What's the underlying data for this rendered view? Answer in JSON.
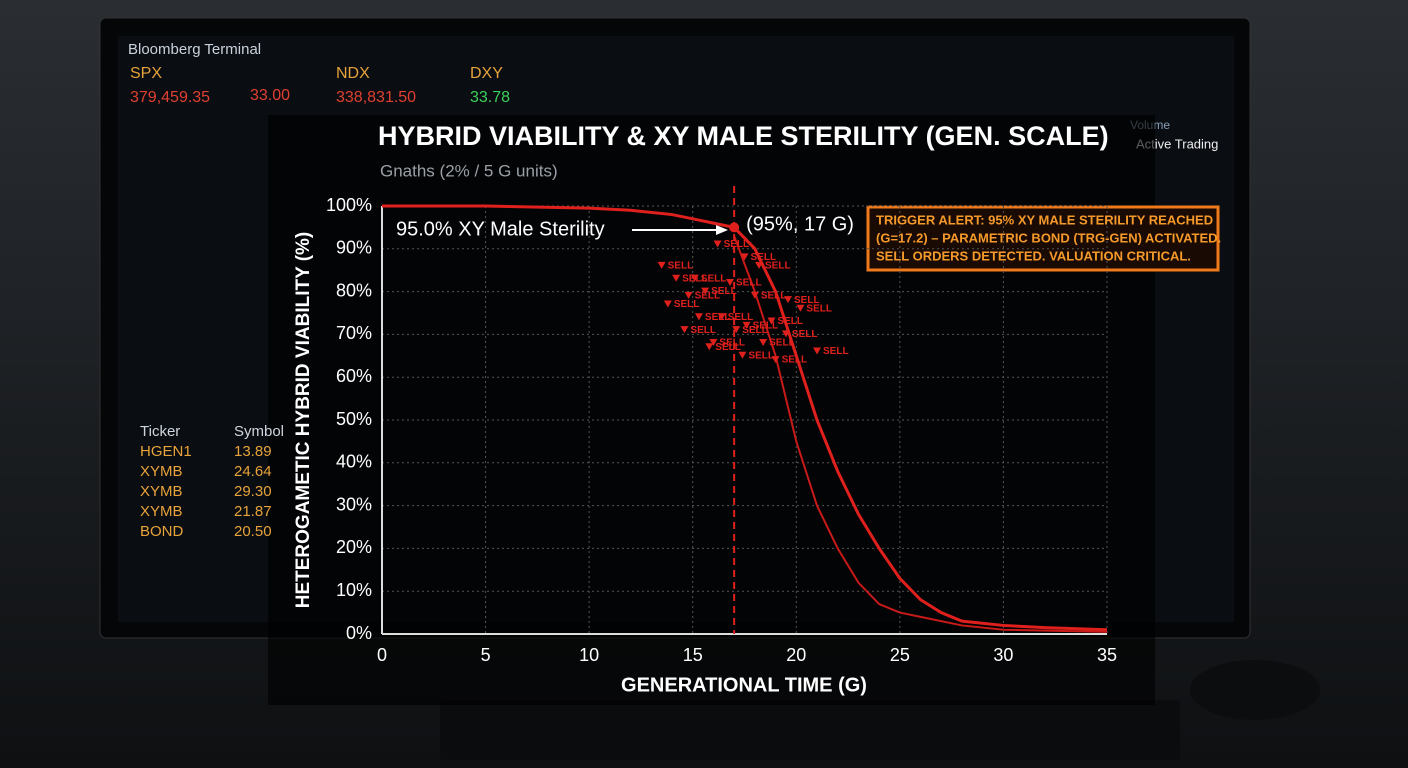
{
  "terminal": {
    "title": "Bloomberg Terminal",
    "quotes": [
      {
        "symbol": "SPX",
        "price": "379,459.35",
        "change": "33.00"
      },
      {
        "symbol": "NDX",
        "price": "338,831.50"
      },
      {
        "symbol": "DXY",
        "price": "33.78"
      }
    ],
    "side_panel": "Active Trading",
    "volume_label": "Volume",
    "ticker_header": [
      "Ticker",
      "Symbol"
    ],
    "tickers": [
      [
        "HGEN1",
        "13.89"
      ],
      [
        "XYMB",
        "24.64"
      ],
      [
        "XYMB",
        "29.30"
      ],
      [
        "XYMB",
        "21.87"
      ],
      [
        "BOND",
        "20.50"
      ]
    ]
  },
  "chart_data": {
    "type": "line",
    "title": "HYBRID VIABILITY & XY MALE STERILITY (GEN. SCALE)",
    "subtitle": "Gnaths (2% / 5 G units)",
    "x_label": "GENERATIONAL TIME (G)",
    "y_label": "HETEROGAMETIC HYBRID VIABILITY (%)",
    "xlim": [
      0,
      35
    ],
    "xticks": [
      0,
      5,
      10,
      15,
      20,
      25,
      30,
      35
    ],
    "ylim": [
      0,
      100
    ],
    "yticks": [
      {
        "value": 0,
        "label": "0%"
      },
      {
        "value": 10,
        "label": "10%"
      },
      {
        "value": 20,
        "label": "20%"
      },
      {
        "value": 30,
        "label": "30%"
      },
      {
        "value": 40,
        "label": "40%"
      },
      {
        "value": 50,
        "label": "50%"
      },
      {
        "value": 60,
        "label": "60%"
      },
      {
        "value": 70,
        "label": "70%"
      },
      {
        "value": 80,
        "label": "80%"
      },
      {
        "value": 90,
        "label": "90%"
      },
      {
        "value": 100,
        "label": "100%"
      }
    ],
    "grid": true,
    "series": [
      {
        "color": "#e0201c",
        "x": [
          0,
          5,
          10,
          12,
          14,
          15,
          16,
          17,
          18,
          19,
          20,
          21,
          22,
          23,
          24,
          25,
          26,
          27,
          28,
          30,
          32,
          35
        ],
        "values": [
          100,
          100,
          99.5,
          99,
          98,
          97,
          96,
          95,
          90,
          80,
          65,
          50,
          38,
          28,
          20,
          13,
          8,
          5,
          3,
          2,
          1.5,
          1
        ]
      },
      {
        "color": "#c81a18",
        "x": [
          17,
          18,
          19,
          20,
          21,
          22,
          23,
          24,
          25,
          26,
          28,
          30,
          35
        ],
        "values": [
          93,
          80,
          65,
          45,
          30,
          20,
          12,
          7,
          5,
          4,
          2,
          1,
          0.5
        ]
      }
    ],
    "marker": {
      "x": 17,
      "y": 95,
      "label": "(95%, 17 G)",
      "color": "#e0201c"
    },
    "callout": "95.0% XY Male Sterility",
    "sell_signals": {
      "label": "SELL",
      "color": "#e0201c",
      "x": [
        13.5,
        14.2,
        15.1,
        16.2,
        17.5,
        18.2,
        14.8,
        15.6,
        16.8,
        18.0,
        19.6,
        13.8,
        15.3,
        16.4,
        17.6,
        18.8,
        20.2,
        14.6,
        16.0,
        17.1,
        18.4,
        19.5,
        15.8,
        17.4,
        19.0,
        21.0
      ],
      "y": [
        86,
        83,
        83,
        91,
        88,
        86,
        79,
        80,
        82,
        79,
        78,
        77,
        74,
        74,
        72,
        73,
        76,
        71,
        68,
        71,
        68,
        70,
        67,
        65,
        64,
        66
      ]
    },
    "alert": [
      "TRIGGER ALERT: 95% XY MALE STERILITY REACHED",
      "(G=17.2) – PARAMETRIC BOND (TRG-GEN) ACTIVATED.",
      "SELL ORDERS DETECTED. VALUATION CRITICAL."
    ]
  }
}
